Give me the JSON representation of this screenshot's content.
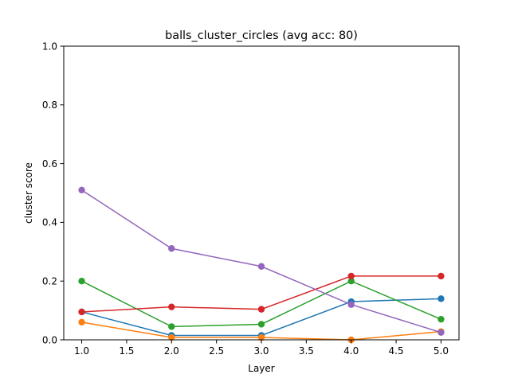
{
  "chart_data": {
    "type": "line",
    "title": "balls_cluster_circles (avg acc: 80)",
    "xlabel": "Layer",
    "ylabel": "cluster score",
    "xlim": [
      0.8,
      5.2
    ],
    "ylim": [
      0.0,
      1.0
    ],
    "xticks": [
      1.0,
      1.5,
      2.0,
      2.5,
      3.0,
      3.5,
      4.0,
      4.5,
      5.0
    ],
    "yticks": [
      0.0,
      0.2,
      0.4,
      0.6,
      0.8,
      1.0
    ],
    "xtick_labels": [
      "1.0",
      "1.5",
      "2.0",
      "2.5",
      "3.0",
      "3.5",
      "4.0",
      "4.5",
      "5.0"
    ],
    "ytick_labels": [
      "0.0",
      "0.2",
      "0.4",
      "0.6",
      "0.8",
      "1.0"
    ],
    "grid": false,
    "x": [
      1,
      2,
      3,
      4,
      5
    ],
    "series": [
      {
        "color": "#1f77b4",
        "values": [
          0.095,
          0.015,
          0.015,
          0.13,
          0.14
        ]
      },
      {
        "color": "#ff7f0e",
        "values": [
          0.06,
          0.008,
          0.008,
          0.0,
          0.028
        ]
      },
      {
        "color": "#2ca02c",
        "values": [
          0.2,
          0.045,
          0.053,
          0.2,
          0.07
        ]
      },
      {
        "color": "#d62728",
        "values": [
          0.095,
          0.112,
          0.104,
          0.217,
          0.217
        ]
      },
      {
        "color": "#9467bd",
        "values": [
          0.51,
          0.311,
          0.25,
          0.12,
          0.025
        ]
      }
    ]
  }
}
